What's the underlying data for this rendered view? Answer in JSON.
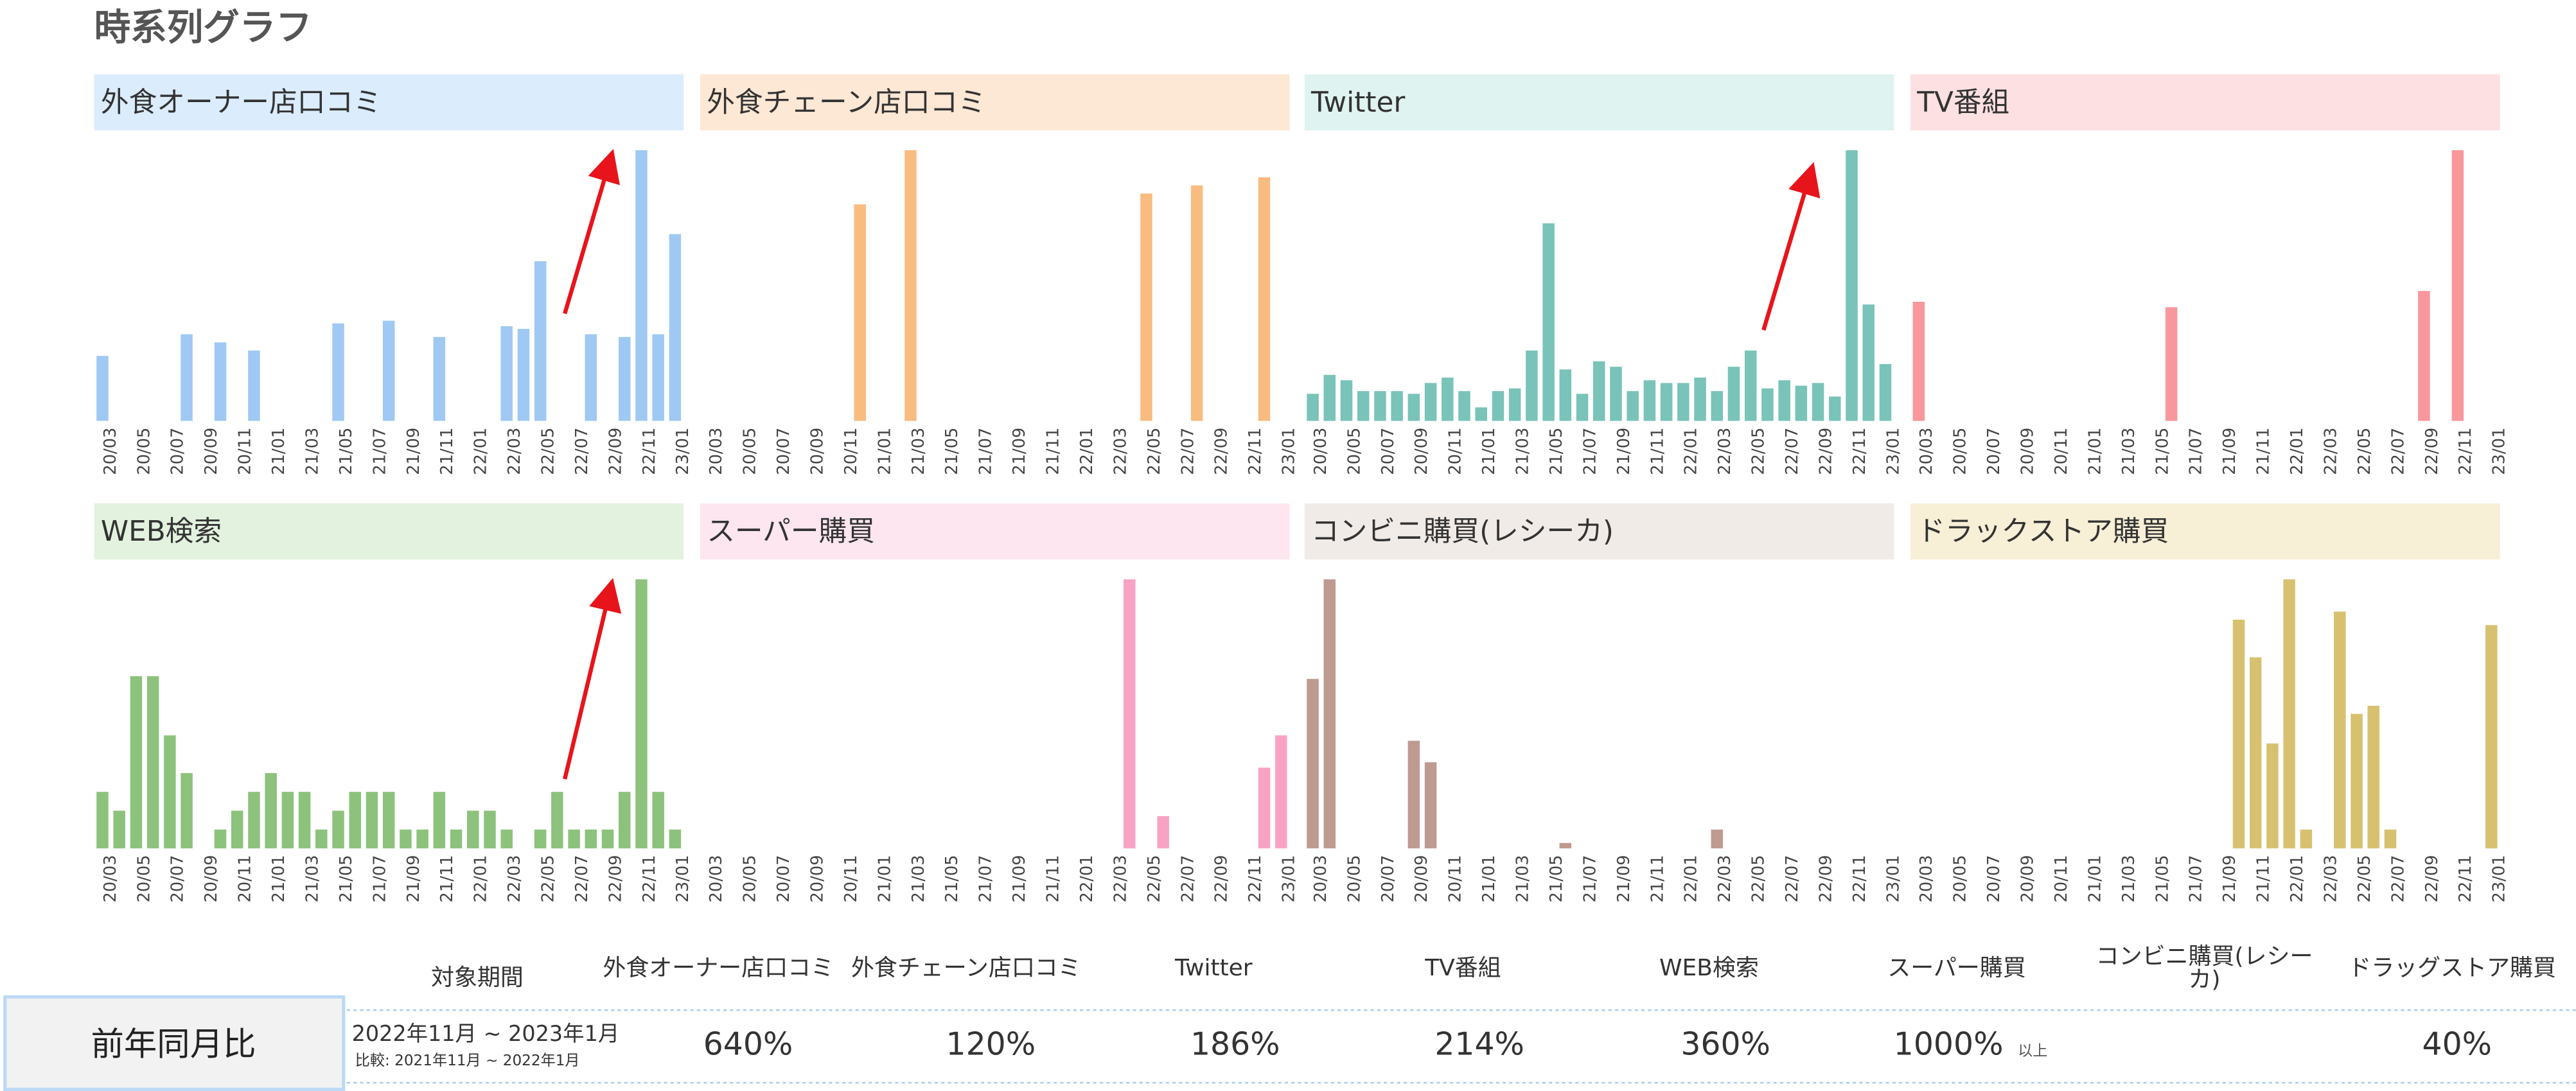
{
  "page_title": "時系列グラフ",
  "chart_data": [
    {
      "type": "bar",
      "title": "外食オーナー店口コミ",
      "color": "#9fc9f2",
      "ylim": [
        0,
        100
      ],
      "categories": [
        "20/03",
        null,
        "20/05",
        null,
        "20/07",
        null,
        "20/09",
        null,
        "20/11",
        null,
        "21/01",
        null,
        "21/03",
        null,
        "21/05",
        null,
        "21/07",
        null,
        "21/09",
        null,
        "21/11",
        null,
        "22/01",
        null,
        "22/03",
        null,
        "22/05",
        null,
        "22/07",
        null,
        "22/09",
        null,
        "22/11",
        null,
        "23/01"
      ],
      "values": [
        24,
        0,
        0,
        0,
        0,
        32,
        0,
        29,
        0,
        26,
        0,
        0,
        0,
        0,
        36,
        0,
        0,
        37,
        0,
        0,
        31,
        0,
        0,
        0,
        35,
        34,
        59,
        0,
        0,
        32,
        0,
        31,
        100,
        32,
        69
      ]
    },
    {
      "type": "bar",
      "title": "外食チェーン店口コミ",
      "color": "#f8bc80",
      "ylim": [
        0,
        100
      ],
      "categories": [
        "20/03",
        null,
        "20/05",
        null,
        "20/07",
        null,
        "20/09",
        null,
        "20/11",
        null,
        "21/01",
        null,
        "21/03",
        null,
        "21/05",
        null,
        "21/07",
        null,
        "21/09",
        null,
        "21/11",
        null,
        "22/01",
        null,
        "22/03",
        null,
        "22/05",
        null,
        "22/07",
        null,
        "22/09",
        null,
        "22/11",
        null,
        "23/01"
      ],
      "values": [
        0,
        0,
        0,
        0,
        0,
        0,
        0,
        0,
        0,
        80,
        0,
        0,
        100,
        0,
        0,
        0,
        0,
        0,
        0,
        0,
        0,
        0,
        0,
        0,
        0,
        0,
        84,
        0,
        0,
        87,
        0,
        0,
        0,
        90,
        0
      ]
    },
    {
      "type": "bar",
      "title": "Twitter",
      "color": "#79c3b9",
      "ylim": [
        0,
        100
      ],
      "categories": [
        "20/03",
        null,
        "20/05",
        null,
        "20/07",
        null,
        "20/09",
        null,
        "20/11",
        null,
        "21/01",
        null,
        "21/03",
        null,
        "21/05",
        null,
        "21/07",
        null,
        "21/09",
        null,
        "21/11",
        null,
        "22/01",
        null,
        "22/03",
        null,
        "22/05",
        null,
        "22/07",
        null,
        "22/09",
        null,
        "22/11",
        null,
        "23/01"
      ],
      "values": [
        10,
        17,
        15,
        11,
        11,
        11,
        10,
        14,
        16,
        11,
        5,
        11,
        12,
        26,
        73,
        19,
        10,
        22,
        20,
        11,
        15,
        14,
        14,
        16,
        11,
        20,
        26,
        12,
        15,
        13,
        14,
        9,
        100,
        43,
        21
      ]
    },
    {
      "type": "bar",
      "title": "TV番組",
      "color": "#f8979c",
      "ylim": [
        0,
        100
      ],
      "categories": [
        "20/03",
        null,
        "20/05",
        null,
        "20/07",
        null,
        "20/09",
        null,
        "20/11",
        null,
        "21/01",
        null,
        "21/03",
        null,
        "21/05",
        null,
        "21/07",
        null,
        "21/09",
        null,
        "21/11",
        null,
        "22/01",
        null,
        "22/03",
        null,
        "22/05",
        null,
        "22/07",
        null,
        "22/09",
        null,
        "22/11",
        null,
        "23/01"
      ],
      "values": [
        44,
        0,
        0,
        0,
        0,
        0,
        0,
        0,
        0,
        0,
        0,
        0,
        0,
        0,
        0,
        42,
        0,
        0,
        0,
        0,
        0,
        0,
        0,
        0,
        0,
        0,
        0,
        0,
        0,
        0,
        48,
        0,
        100,
        0,
        0
      ]
    },
    {
      "type": "bar",
      "title": "WEB検索",
      "color": "#8dc27c",
      "ylim": [
        0,
        100
      ],
      "categories": [
        "20/03",
        null,
        "20/05",
        null,
        "20/07",
        null,
        "20/09",
        null,
        "20/11",
        null,
        "21/01",
        null,
        "21/03",
        null,
        "21/05",
        null,
        "21/07",
        null,
        "21/09",
        null,
        "21/11",
        null,
        "22/01",
        null,
        "22/03",
        null,
        "22/05",
        null,
        "22/07",
        null,
        "22/09",
        null,
        "22/11",
        null,
        "23/01"
      ],
      "values": [
        21,
        14,
        64,
        64,
        42,
        28,
        0,
        7,
        14,
        21,
        28,
        21,
        21,
        7,
        14,
        21,
        21,
        21,
        7,
        7,
        21,
        7,
        14,
        14,
        7,
        0,
        7,
        21,
        7,
        7,
        7,
        21,
        100,
        21,
        7
      ]
    },
    {
      "type": "bar",
      "title": "スーパー購買",
      "color": "#f8a3c4",
      "ylim": [
        0,
        100
      ],
      "categories": [
        "20/03",
        null,
        "20/05",
        null,
        "20/07",
        null,
        "20/09",
        null,
        "20/11",
        null,
        "21/01",
        null,
        "21/03",
        null,
        "21/05",
        null,
        "21/07",
        null,
        "21/09",
        null,
        "21/11",
        null,
        "22/01",
        null,
        "22/03",
        null,
        "22/05",
        null,
        "22/07",
        null,
        "22/09",
        null,
        "22/11",
        null,
        "23/01"
      ],
      "values": [
        0,
        0,
        0,
        0,
        0,
        0,
        0,
        0,
        0,
        0,
        0,
        0,
        0,
        0,
        0,
        0,
        0,
        0,
        0,
        0,
        0,
        0,
        0,
        0,
        0,
        100,
        0,
        12,
        0,
        0,
        0,
        0,
        0,
        30,
        42
      ]
    },
    {
      "type": "bar",
      "title": "コンビニ購買(レシーカ)",
      "color": "#bf9a90",
      "ylim": [
        0,
        100
      ],
      "categories": [
        "20/03",
        null,
        "20/05",
        null,
        "20/07",
        null,
        "20/09",
        null,
        "20/11",
        null,
        "21/01",
        null,
        "21/03",
        null,
        "21/05",
        null,
        "21/07",
        null,
        "21/09",
        null,
        "21/11",
        null,
        "22/01",
        null,
        "22/03",
        null,
        "22/05",
        null,
        "22/07",
        null,
        "22/09",
        null,
        "22/11",
        null,
        "23/01"
      ],
      "values": [
        63,
        100,
        0,
        0,
        0,
        0,
        40,
        32,
        0,
        0,
        0,
        0,
        0,
        0,
        0,
        2,
        0,
        0,
        0,
        0,
        0,
        0,
        0,
        0,
        7,
        0,
        0,
        0,
        0,
        0,
        0,
        0,
        0,
        0,
        0
      ]
    },
    {
      "type": "bar",
      "title": "ドラックストア購買",
      "color": "#d7c170",
      "ylim": [
        0,
        100
      ],
      "categories": [
        "20/03",
        null,
        "20/05",
        null,
        "20/07",
        null,
        "20/09",
        null,
        "20/11",
        null,
        "21/01",
        null,
        "21/03",
        null,
        "21/05",
        null,
        "21/07",
        null,
        "21/09",
        null,
        "21/11",
        null,
        "22/01",
        null,
        "22/03",
        null,
        "22/05",
        null,
        "22/07",
        null,
        "22/09",
        null,
        "22/11",
        null,
        "23/01"
      ],
      "values": [
        0,
        0,
        0,
        0,
        0,
        0,
        0,
        0,
        0,
        0,
        0,
        0,
        0,
        0,
        0,
        0,
        0,
        0,
        0,
        85,
        71,
        39,
        100,
        7,
        0,
        88,
        50,
        53,
        7,
        0,
        0,
        0,
        0,
        0,
        83
      ]
    }
  ],
  "table": {
    "header": [
      "対象期間",
      "外食オーナー店口コミ",
      "外食チェーン店口コミ",
      "Twitter",
      "TV番組",
      "WEB検索",
      "スーパー購買",
      "コンビニ購買(レシーカ)",
      "ドラッグストア購買"
    ],
    "row_header": "前年同月比",
    "period": "2022年11月 ~ 2023年1月",
    "comparison": "比較: 2021年11月 ~ 2022年1月",
    "values": [
      "640%",
      "120%",
      "186%",
      "214%",
      "360%",
      "1000%",
      null,
      "40%"
    ],
    "super_note": "以上"
  }
}
